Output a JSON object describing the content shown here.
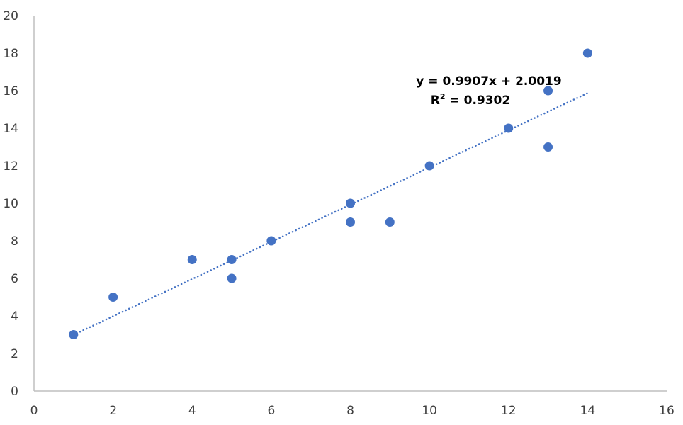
{
  "chart_data": {
    "type": "scatter",
    "title": "",
    "xlabel": "",
    "ylabel": "",
    "xlim": [
      0,
      16
    ],
    "ylim": [
      0,
      20
    ],
    "x_ticks": [
      "0",
      "2",
      "4",
      "6",
      "8",
      "10",
      "12",
      "14",
      "16"
    ],
    "y_ticks": [
      "0",
      "2",
      "4",
      "6",
      "8",
      "10",
      "12",
      "14",
      "16",
      "18",
      "20"
    ],
    "grid": false,
    "legend": "none",
    "series": [
      {
        "color": "#4472C4",
        "points": [
          [
            1,
            3
          ],
          [
            2,
            5
          ],
          [
            4,
            7
          ],
          [
            5,
            7
          ],
          [
            5,
            6
          ],
          [
            6,
            8
          ],
          [
            8,
            10
          ],
          [
            8,
            9
          ],
          [
            9,
            9
          ],
          [
            10,
            12
          ],
          [
            12,
            14
          ],
          [
            13,
            16
          ],
          [
            13,
            13
          ],
          [
            14,
            18
          ]
        ]
      }
    ],
    "trendline": {
      "type": "linear",
      "style": "dotted",
      "color": "#4472C4",
      "slope": 0.9907,
      "intercept": 2.0019,
      "x_range": [
        1,
        14
      ],
      "equation_label": "y = 0.9907x + 2.0019",
      "r2_label_prefix": "R",
      "r2_label_sup": "2",
      "r2_label_value": " = 0.9302"
    },
    "axis_color": "#BFBFBF"
  }
}
